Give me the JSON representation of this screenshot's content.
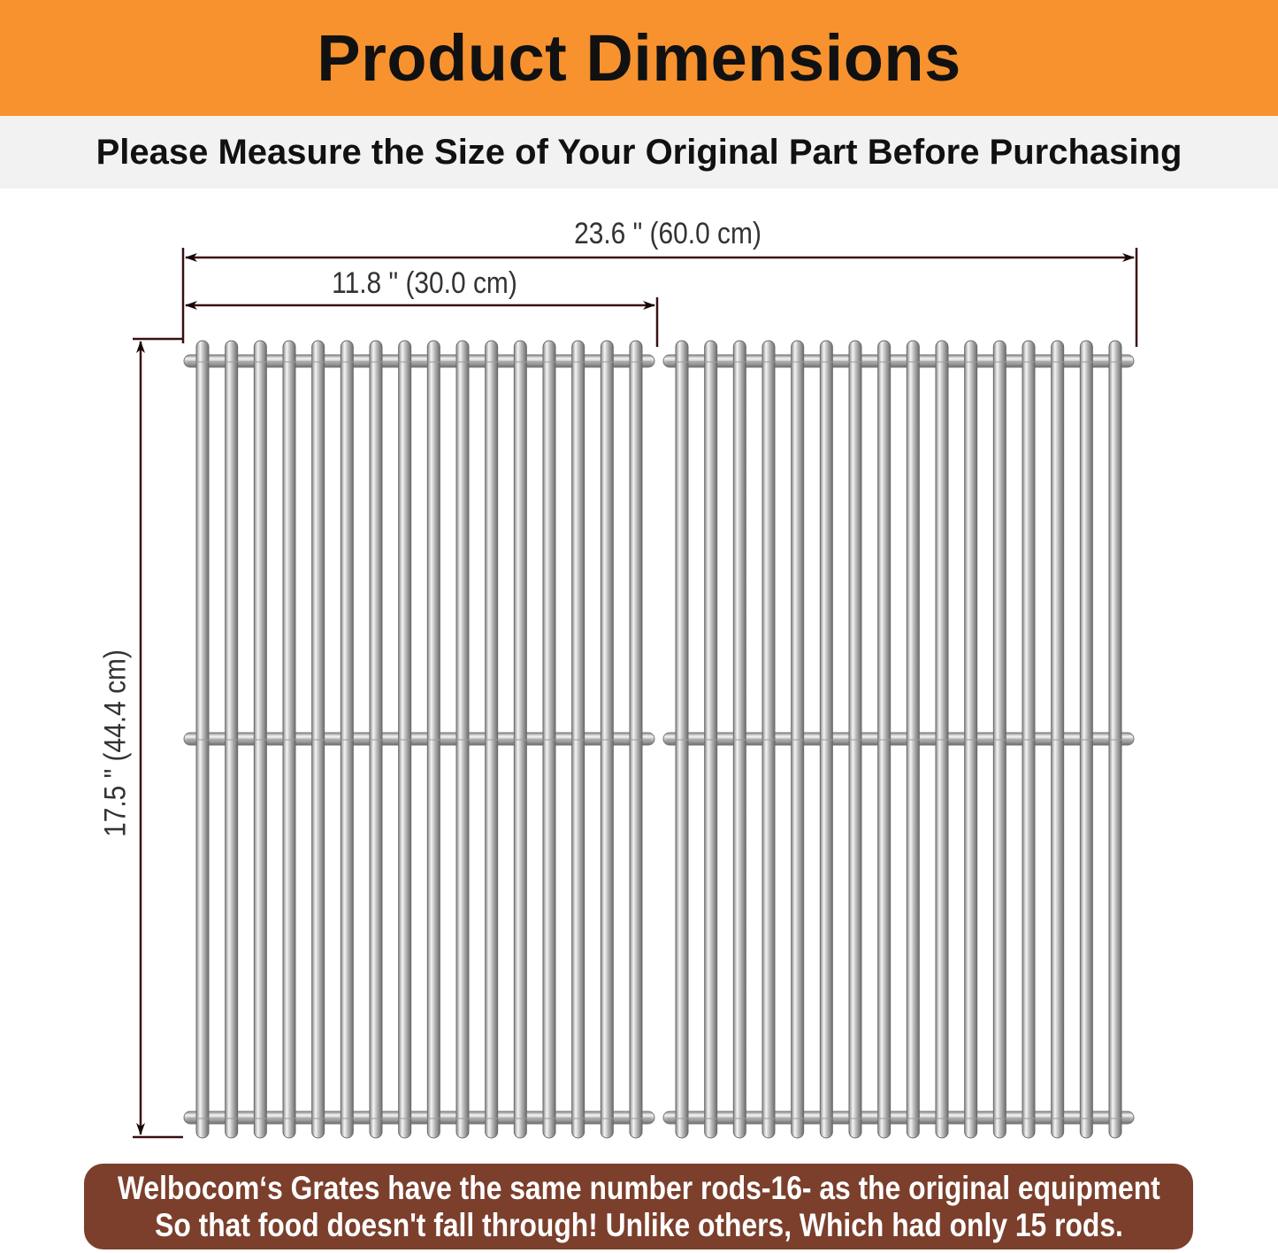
{
  "header": {
    "title": "Product Dimensions"
  },
  "subheader": {
    "text": "Please Measure the Size of Your Original Part Before Purchasing"
  },
  "dimensions": {
    "total_width": "23.6 \" (60.0 cm)",
    "single_width": "11.8 \" (30.0 cm)",
    "depth": "17.5 \" (44.4 cm)"
  },
  "grates": {
    "count": 2,
    "rods_per_grate": 16,
    "crossbars": 3
  },
  "note": {
    "line1": "Welbocom‘s Grates have the same number rods-16- as the original equipment",
    "line2": "So that food doesn't fall through!  Unlike others, Which had only 15 rods."
  },
  "colors": {
    "banner": "#f7922f",
    "subheader_bg": "#f2f2f2",
    "note_bg": "#7b3f2c",
    "dimension_line": "#3a0f12"
  }
}
